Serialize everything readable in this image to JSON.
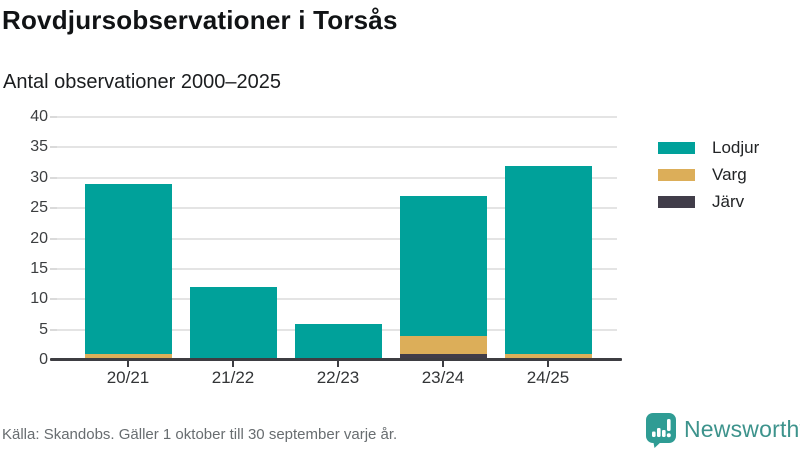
{
  "chart_data": {
    "type": "bar",
    "stacked": true,
    "title": "Rovdjursobservationer i Torsås",
    "subtitle": "Antal observationer 2000–2025",
    "categories": [
      "20/21",
      "21/22",
      "22/23",
      "23/24",
      "24/25"
    ],
    "series": [
      {
        "name": "Lodjur",
        "color": "#00A19A",
        "values": [
          28,
          12,
          6,
          23,
          31
        ]
      },
      {
        "name": "Varg",
        "color": "#DCAE59",
        "values": [
          1,
          0,
          0,
          3,
          1
        ]
      },
      {
        "name": "Järv",
        "color": "#413D49",
        "values": [
          0,
          0,
          0,
          1,
          0
        ]
      }
    ],
    "stack_order_bottom_to_top": [
      "Järv",
      "Varg",
      "Lodjur"
    ],
    "stack_totals": [
      29,
      12,
      6,
      27,
      32
    ],
    "ylim": [
      0,
      40
    ],
    "yticks": [
      0,
      5,
      10,
      15,
      20,
      25,
      30,
      35,
      40
    ],
    "grid": true,
    "legend_position": "right",
    "legend": [
      "Lodjur",
      "Varg",
      "Järv"
    ],
    "source_note": "Källa: Skandobs. Gäller 1 oktober till 30 september varje år."
  },
  "branding": {
    "name": "Newsworthy",
    "logo_icon": "bar-chart-speech-bubble-icon",
    "logo_color": "#2F9C94",
    "text_color": "#3D938C"
  }
}
